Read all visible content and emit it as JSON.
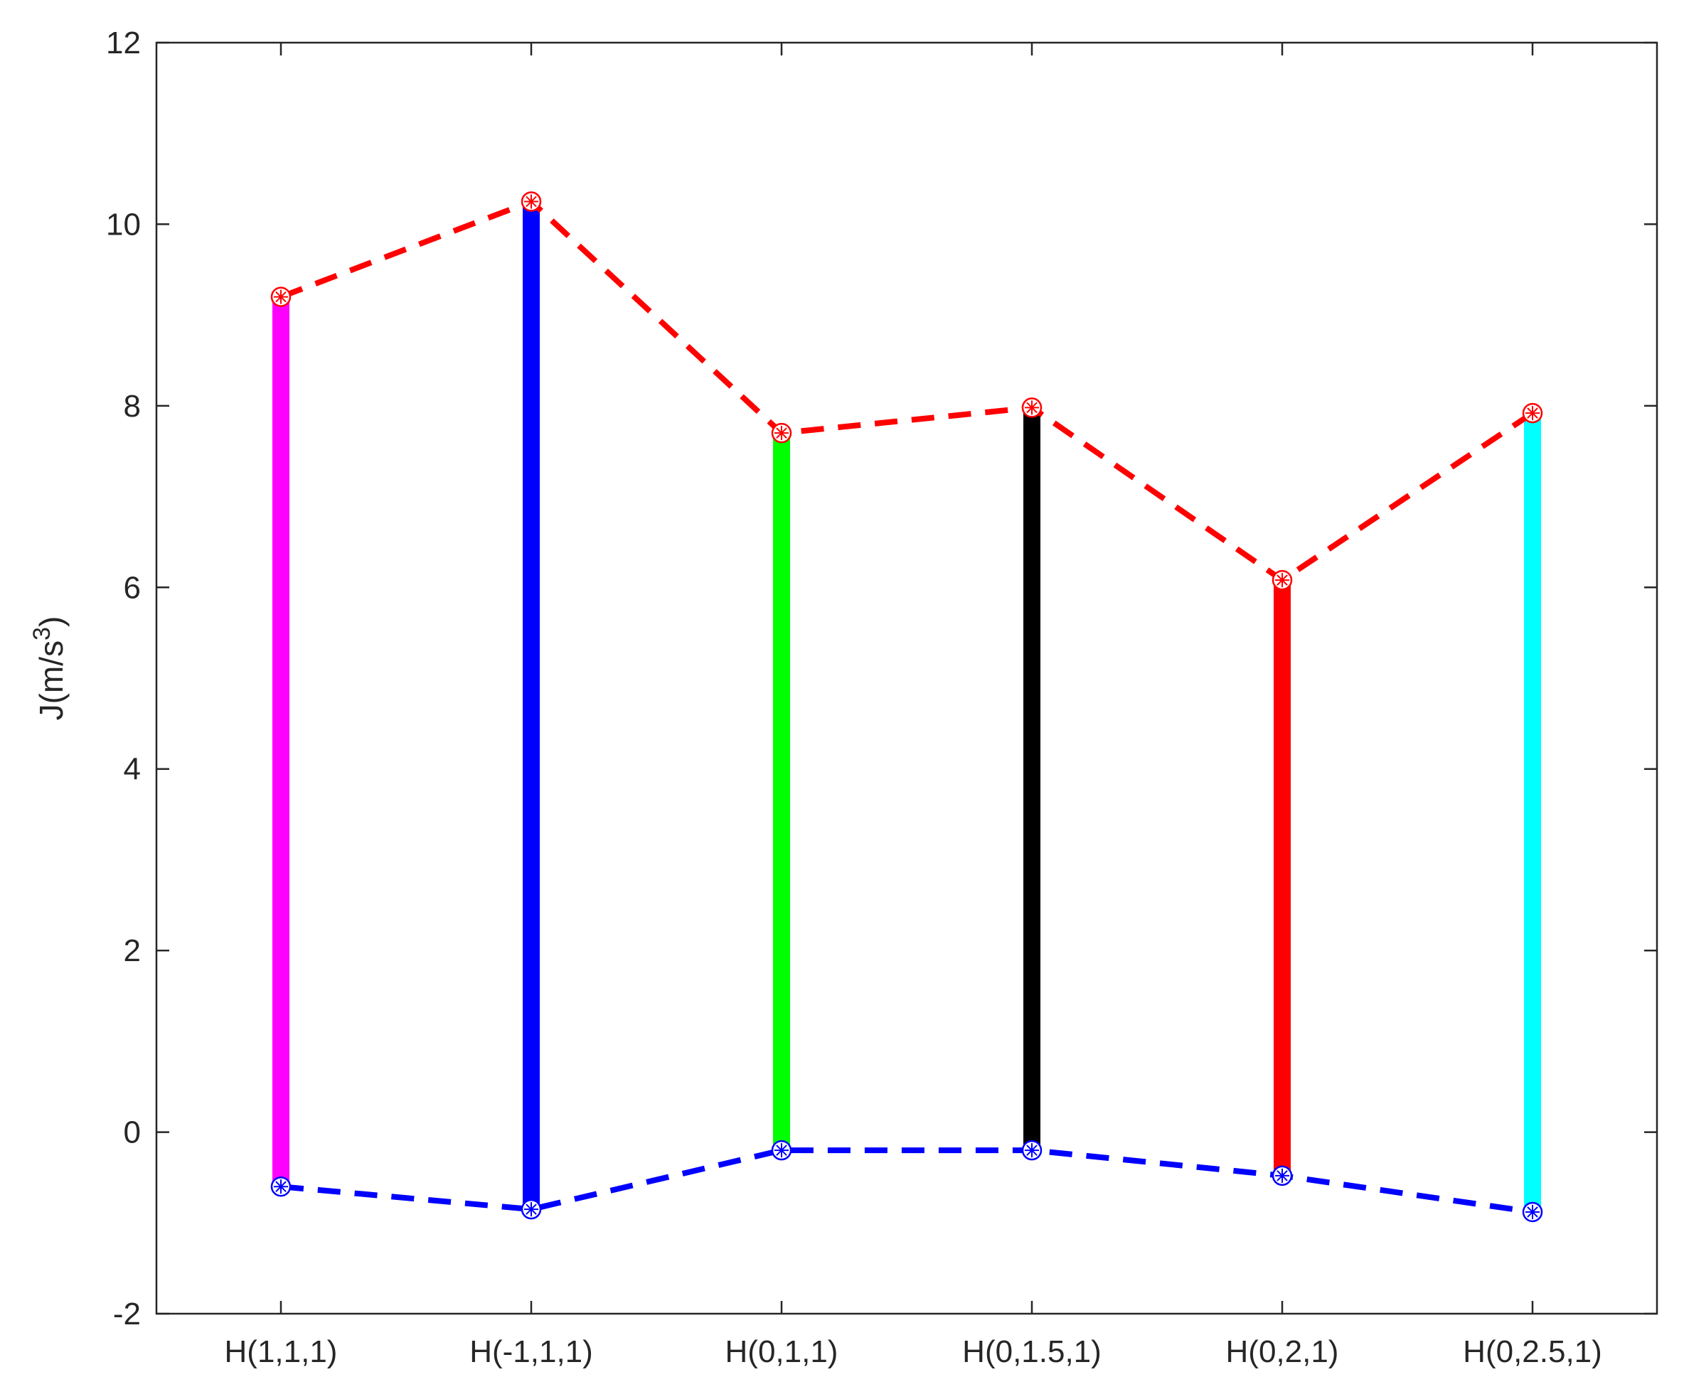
{
  "chart_data": {
    "type": "range",
    "categories": [
      "H(1,1,1)",
      "H(-1,1,1)",
      "H(0,1,1)",
      "H(0,1.5,1)",
      "H(0,2,1)",
      "H(0,2.5,1)"
    ],
    "series": [
      {
        "values": [
          9.2,
          10.25,
          7.7,
          7.98,
          6.08,
          7.92
        ],
        "color": "#ff0000",
        "style": "dashed",
        "marker": "circle"
      },
      {
        "values": [
          -0.6,
          -0.85,
          -0.2,
          -0.2,
          -0.48,
          -0.88
        ],
        "color": "#0000ff",
        "style": "dashed",
        "marker": "circle"
      }
    ],
    "bar_colors": [
      "#ff00ff",
      "#0000ff",
      "#00ff00",
      "#000000",
      "#ff0000",
      "#00ffff"
    ],
    "ylabel_main": "J(m/s",
    "ylabel_sup": "3",
    "ylabel_close": ")",
    "ylim": [
      -2,
      12
    ],
    "yticks": [
      -2,
      0,
      2,
      4,
      6,
      8,
      10,
      12
    ],
    "grid": false
  }
}
